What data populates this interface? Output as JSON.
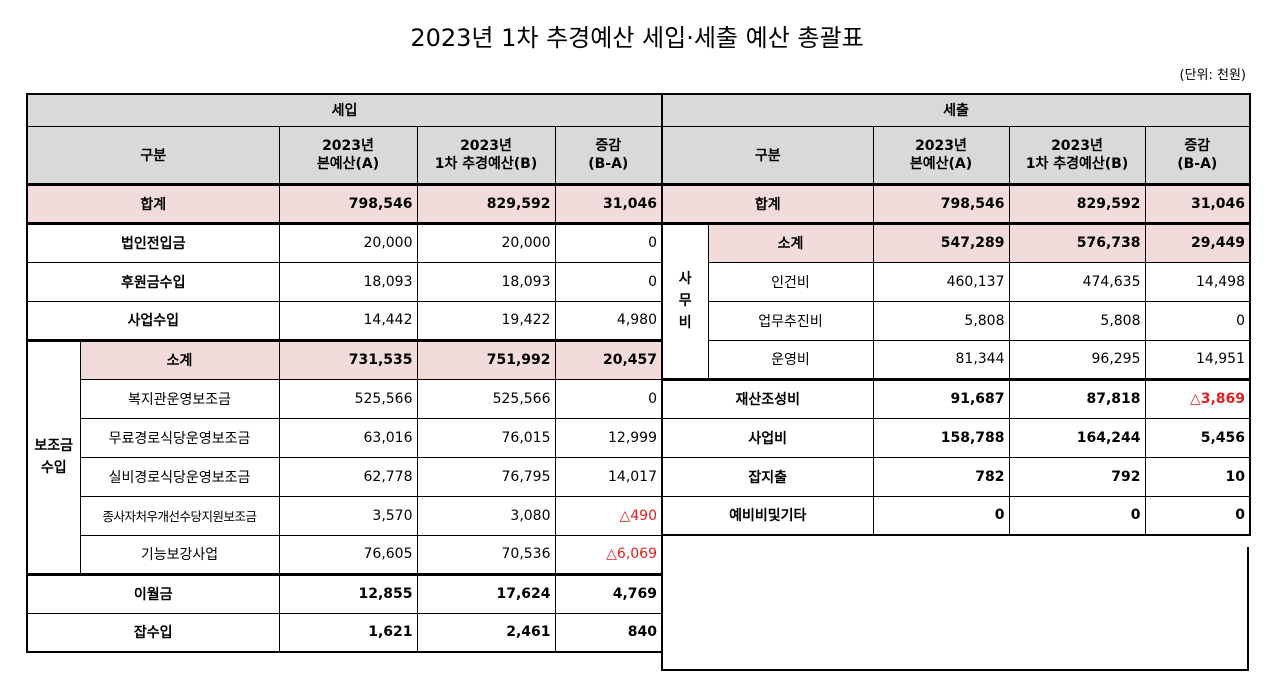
{
  "title": "2023년 1차 추경예산 세입·세출 예산 총괄표",
  "unit": "(단위: 천원)",
  "income": {
    "section": "세입",
    "headers": {
      "category": "구분",
      "col_a": "2023년\n본예산(A)",
      "col_b": "2023년\n1차 추경예산(B)",
      "col_diff": "증감\n(B-A)"
    },
    "total": {
      "label": "합계",
      "a": "798,546",
      "b": "829,592",
      "diff": "31,046"
    },
    "rows1": [
      {
        "label": "법인전입금",
        "a": "20,000",
        "b": "20,000",
        "diff": "0"
      },
      {
        "label": "후원금수입",
        "a": "18,093",
        "b": "18,093",
        "diff": "0"
      },
      {
        "label": "사업수입",
        "a": "14,442",
        "b": "19,422",
        "diff": "4,980"
      }
    ],
    "subsidy": {
      "group_label": "보조금\n수입",
      "subtotal": {
        "label": "소계",
        "a": "731,535",
        "b": "751,992",
        "diff": "20,457"
      },
      "items": [
        {
          "label": "복지관운영보조금",
          "a": "525,566",
          "b": "525,566",
          "diff": "0"
        },
        {
          "label": "무료경로식당운영보조금",
          "a": "63,016",
          "b": "76,015",
          "diff": "12,999"
        },
        {
          "label": "실비경로식당운영보조금",
          "a": "62,778",
          "b": "76,795",
          "diff": "14,017"
        },
        {
          "label": "종사자처우개선수당지원보조금",
          "a": "3,570",
          "b": "3,080",
          "diff": "△490"
        },
        {
          "label": "기능보강사업",
          "a": "76,605",
          "b": "70,536",
          "diff": "△6,069"
        }
      ]
    },
    "rows2": [
      {
        "label": "이월금",
        "a": "12,855",
        "b": "17,624",
        "diff": "4,769"
      },
      {
        "label": "잡수입",
        "a": "1,621",
        "b": "2,461",
        "diff": "840"
      }
    ]
  },
  "expense": {
    "section": "세출",
    "headers": {
      "category": "구분",
      "col_a": "2023년\n본예산(A)",
      "col_b": "2023년\n1차 추경예산(B)",
      "col_diff": "증감\n(B-A)"
    },
    "total": {
      "label": "합계",
      "a": "798,546",
      "b": "829,592",
      "diff": "31,046"
    },
    "admin": {
      "group_label": "사\n무\n비",
      "subtotal": {
        "label": "소계",
        "a": "547,289",
        "b": "576,738",
        "diff": "29,449"
      },
      "items": [
        {
          "label": "인건비",
          "a": "460,137",
          "b": "474,635",
          "diff": "14,498"
        },
        {
          "label": "업무추진비",
          "a": "5,808",
          "b": "5,808",
          "diff": "0"
        },
        {
          "label": "운영비",
          "a": "81,344",
          "b": "96,295",
          "diff": "14,951"
        }
      ]
    },
    "rows": [
      {
        "label": "재산조성비",
        "a": "91,687",
        "b": "87,818",
        "diff": "△3,869"
      },
      {
        "label": "사업비",
        "a": "158,788",
        "b": "164,244",
        "diff": "5,456"
      },
      {
        "label": "잡지출",
        "a": "782",
        "b": "792",
        "diff": "10"
      },
      {
        "label": "예비비및기타",
        "a": "0",
        "b": "0",
        "diff": "0"
      }
    ]
  },
  "colors": {
    "header_bg": "#d9d9d9",
    "sum_bg": "#f2dcdb",
    "negative": "#e02020"
  }
}
